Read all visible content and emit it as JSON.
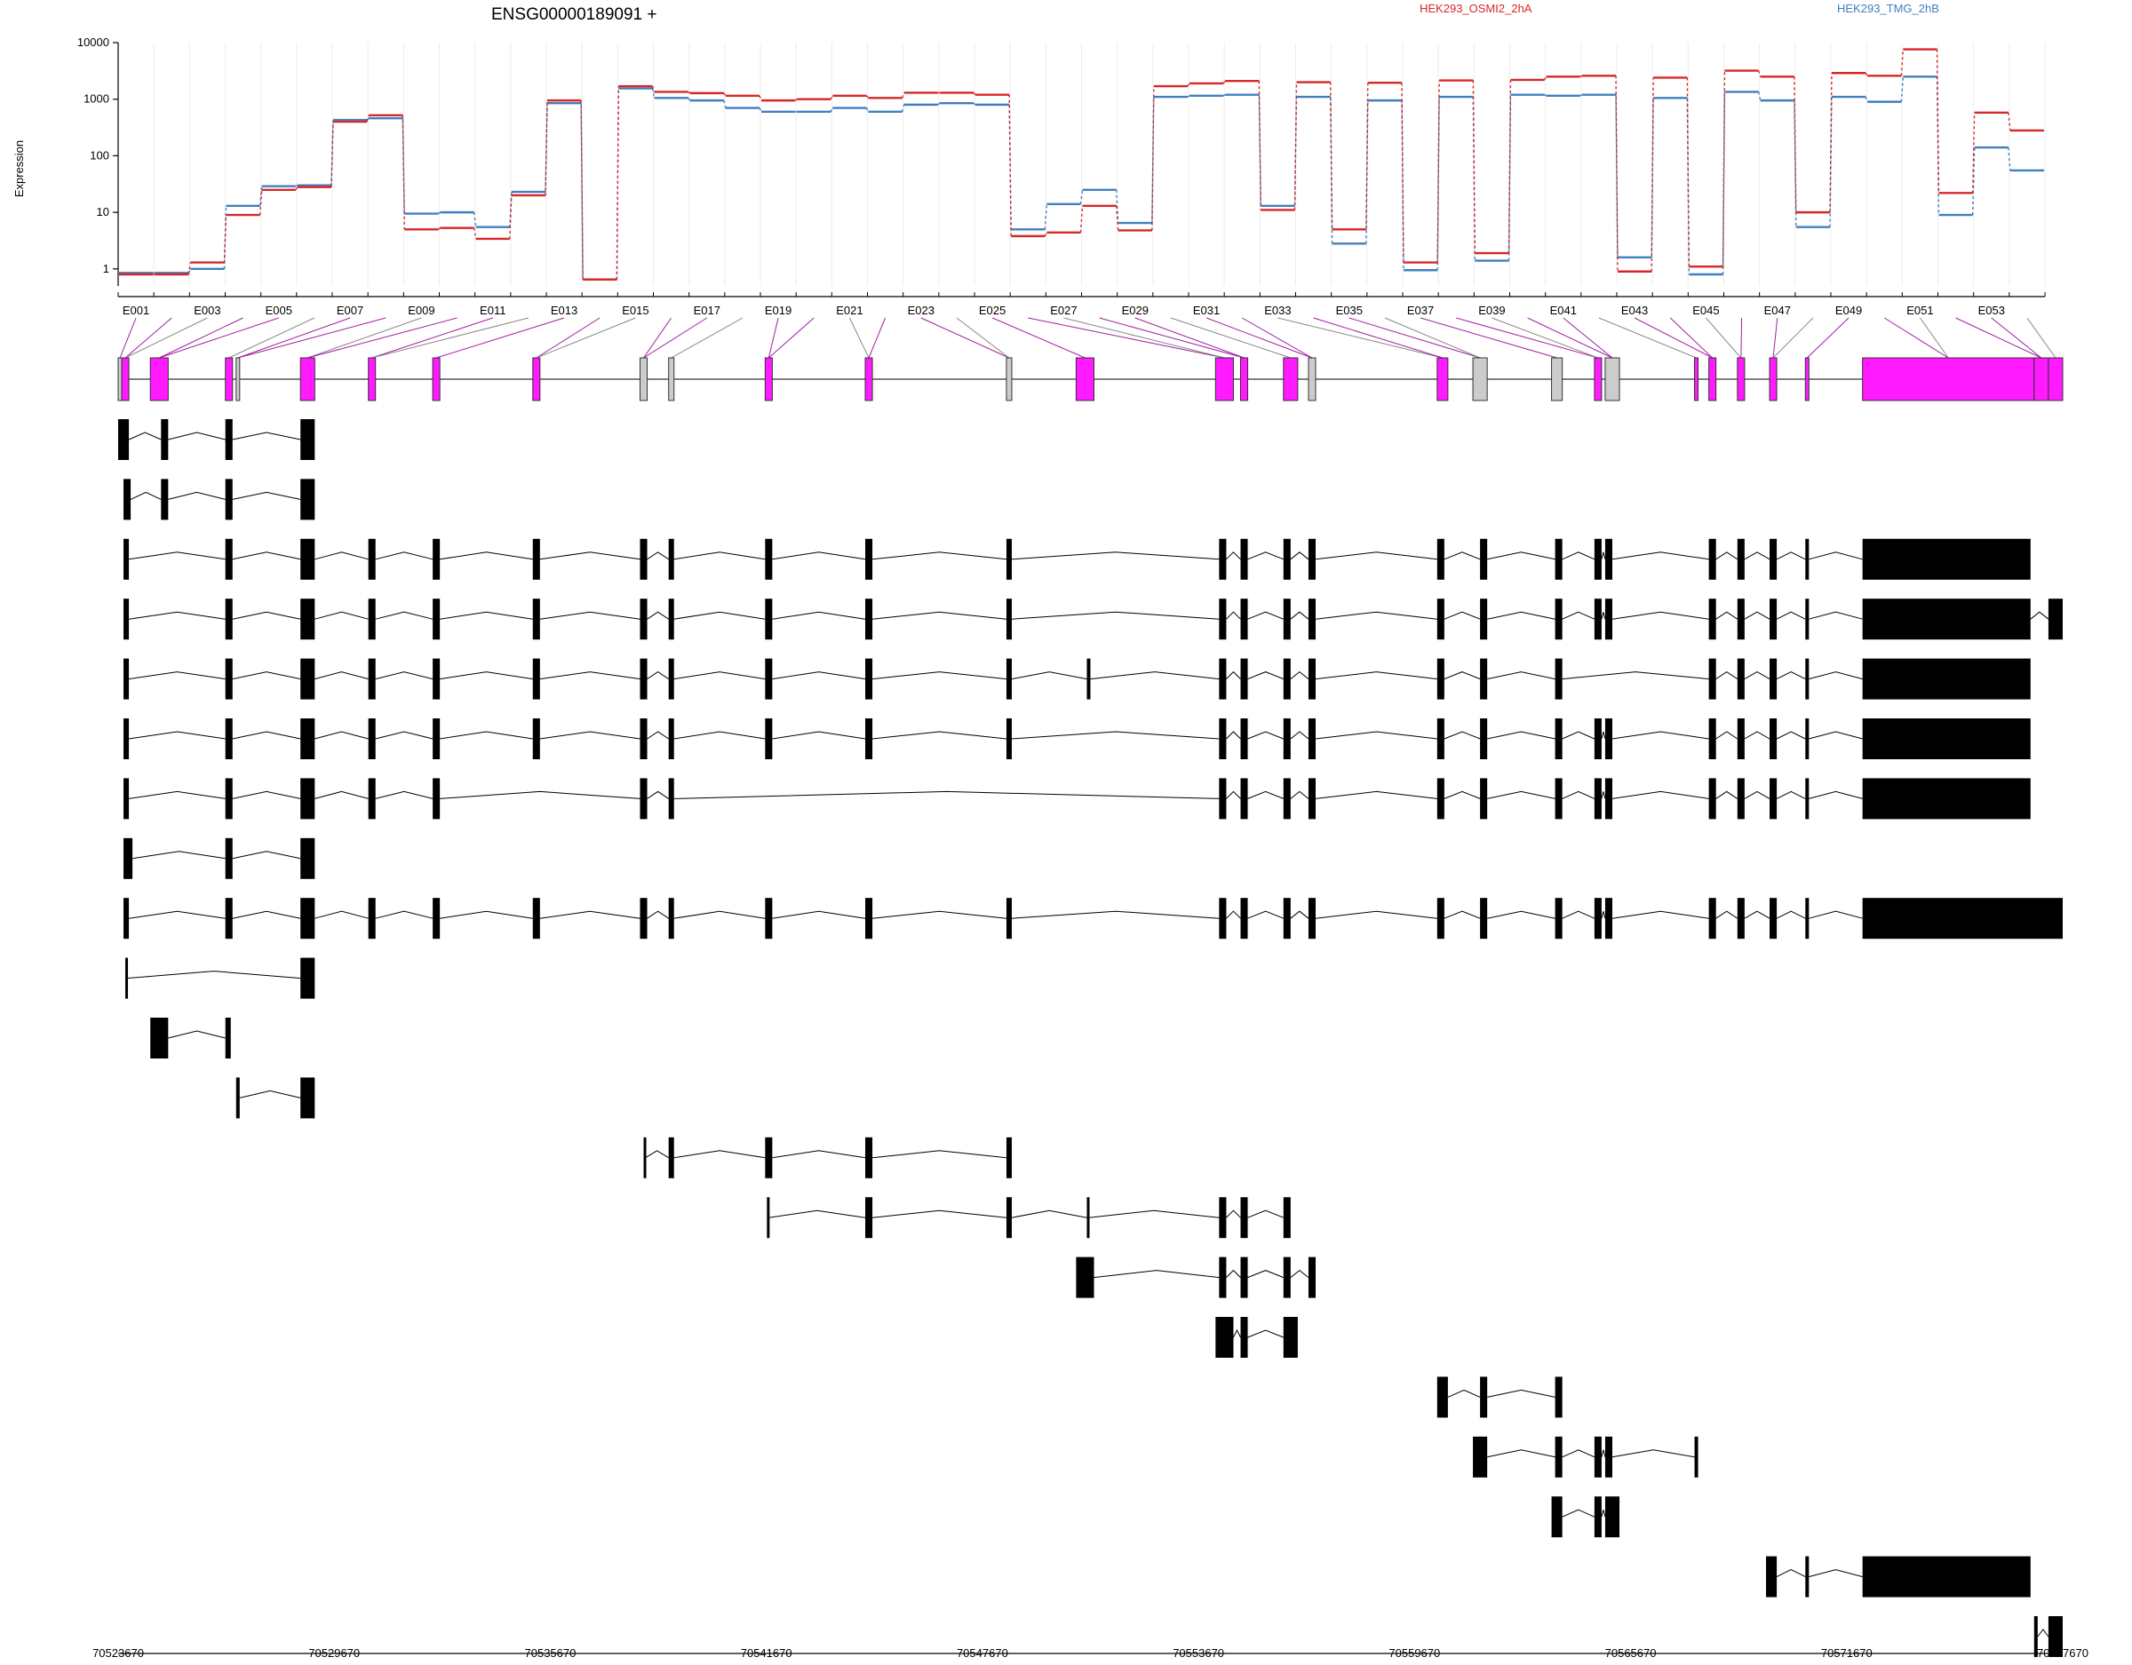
{
  "title": "ENSG00000189091 +",
  "ylabel": "Expression",
  "colors": {
    "sample_a": "#d62728",
    "sample_b": "#3f7fbf",
    "exon_highlight": "#ff1aff",
    "exon_other": "#cccccc",
    "exon_transcript": "#000000",
    "link": "#a020a0"
  },
  "chart_data": {
    "type": "line",
    "y_scale": "log",
    "ylim": [
      0.5,
      10000
    ],
    "y_ticks": [
      1,
      10,
      100,
      1000,
      10000
    ],
    "y_tick_labels": [
      "1",
      "10",
      "100",
      "1000",
      "10000"
    ],
    "x_label_ids": [
      "E001",
      "E003",
      "E005",
      "E007",
      "E009",
      "E011",
      "E013",
      "E015",
      "E017",
      "E019",
      "E021",
      "E023",
      "E025",
      "E027",
      "E029",
      "E031",
      "E033",
      "E035",
      "E037",
      "E039",
      "E041",
      "E043",
      "E045",
      "E047",
      "E049",
      "E051",
      "E053"
    ],
    "categories": [
      "E001",
      "E002",
      "E003",
      "E004",
      "E005",
      "E006",
      "E007",
      "E008",
      "E009",
      "E010",
      "E011",
      "E012",
      "E013",
      "E014",
      "E015",
      "E016",
      "E017",
      "E018",
      "E019",
      "E020",
      "E021",
      "E022",
      "E023",
      "E024",
      "E025",
      "E026",
      "E027",
      "E028",
      "E029",
      "E030",
      "E031",
      "E032",
      "E033",
      "E034",
      "E035",
      "E036",
      "E037",
      "E038",
      "E039",
      "E040",
      "E041",
      "E042",
      "E043",
      "E044",
      "E045",
      "E046",
      "E047",
      "E048",
      "E049",
      "E050",
      "E051",
      "E052",
      "E053",
      "E054"
    ],
    "series": [
      {
        "name": "HEK293_OSMI2_2hA",
        "values": [
          0.8,
          0.8,
          1.3,
          9,
          25,
          28,
          400,
          520,
          5,
          5.3,
          3.4,
          20,
          950,
          0.65,
          1700,
          1350,
          1280,
          1150,
          950,
          1000,
          1150,
          1050,
          1300,
          1300,
          1200,
          3.8,
          4.4,
          13,
          4.8,
          1700,
          1900,
          2100,
          11,
          2000,
          5,
          1950,
          1.3,
          2150,
          1.9,
          2200,
          2500,
          2600,
          0.9,
          2400,
          1.1,
          3200,
          2500,
          10,
          2900,
          2600,
          7600,
          22,
          580,
          280
        ]
      },
      {
        "name": "HEK293_TMG_2hB",
        "values": [
          0.85,
          0.85,
          1,
          13,
          29,
          30,
          430,
          460,
          9.5,
          10,
          5.5,
          23,
          850,
          0.65,
          1550,
          1050,
          950,
          700,
          600,
          600,
          700,
          600,
          800,
          850,
          800,
          5,
          14,
          25,
          6.5,
          1100,
          1150,
          1200,
          13,
          1100,
          2.8,
          950,
          0.95,
          1100,
          1.4,
          1200,
          1150,
          1200,
          1.6,
          1050,
          0.8,
          1350,
          950,
          5.5,
          1100,
          900,
          2500,
          9,
          140,
          55
        ]
      }
    ]
  },
  "genome_axis": {
    "start": 70523670,
    "end": 70577670,
    "ticks": [
      "70523670",
      "70529670",
      "70535670",
      "70541670",
      "70547670",
      "70553670",
      "70559670",
      "70565670",
      "70571670",
      "70577670"
    ]
  },
  "transcripts": [
    [
      [
        0,
        0.3
      ],
      [
        1.2,
        1.4
      ],
      [
        3,
        3.2
      ],
      [
        5.1,
        5.5
      ]
    ],
    [
      [
        0.15,
        0.35
      ],
      [
        1.2,
        1.4
      ],
      [
        3,
        3.2
      ],
      [
        5.1,
        5.5
      ]
    ],
    [
      [
        0.15,
        0.3
      ],
      [
        3,
        3.2
      ],
      [
        5.1,
        5.5
      ],
      [
        7,
        7.2
      ],
      [
        8.8,
        9
      ],
      [
        11.6,
        11.8
      ],
      [
        14.6,
        14.8
      ],
      [
        15.4,
        15.55
      ],
      [
        18.1,
        18.3
      ],
      [
        20.9,
        21.1
      ],
      [
        24.85,
        25
      ],
      [
        30.8,
        31
      ],
      [
        31.4,
        31.6
      ],
      [
        32.6,
        32.8
      ],
      [
        33.3,
        33.5
      ],
      [
        36.9,
        37.1
      ],
      [
        38.1,
        38.3
      ],
      [
        40.2,
        40.4
      ],
      [
        41.3,
        41.5
      ],
      [
        41.6,
        41.8
      ],
      [
        44.5,
        44.7
      ],
      [
        45.3,
        45.5
      ],
      [
        46.2,
        46.4
      ],
      [
        47.2,
        47.3
      ],
      [
        48.8,
        53.5
      ]
    ],
    [
      [
        0.15,
        0.3
      ],
      [
        3,
        3.2
      ],
      [
        5.1,
        5.5
      ],
      [
        7,
        7.2
      ],
      [
        8.8,
        9
      ],
      [
        11.6,
        11.8
      ],
      [
        14.6,
        14.8
      ],
      [
        15.4,
        15.55
      ],
      [
        18.1,
        18.3
      ],
      [
        20.9,
        21.1
      ],
      [
        24.85,
        25
      ],
      [
        30.8,
        31
      ],
      [
        31.4,
        31.6
      ],
      [
        32.6,
        32.8
      ],
      [
        33.3,
        33.5
      ],
      [
        36.9,
        37.1
      ],
      [
        38.1,
        38.3
      ],
      [
        40.2,
        40.4
      ],
      [
        41.3,
        41.5
      ],
      [
        41.6,
        41.8
      ],
      [
        44.5,
        44.7
      ],
      [
        45.3,
        45.5
      ],
      [
        46.2,
        46.4
      ],
      [
        47.2,
        47.3
      ],
      [
        48.8,
        53.5
      ],
      [
        54,
        54.4
      ]
    ],
    [
      [
        0.15,
        0.3
      ],
      [
        3,
        3.2
      ],
      [
        5.1,
        5.5
      ],
      [
        7,
        7.2
      ],
      [
        8.8,
        9
      ],
      [
        11.6,
        11.8
      ],
      [
        14.6,
        14.8
      ],
      [
        15.4,
        15.55
      ],
      [
        18.1,
        18.3
      ],
      [
        20.9,
        21.1
      ],
      [
        24.85,
        25
      ],
      [
        27.1,
        27.2
      ],
      [
        30.8,
        31
      ],
      [
        31.4,
        31.6
      ],
      [
        32.6,
        32.8
      ],
      [
        33.3,
        33.5
      ],
      [
        36.9,
        37.1
      ],
      [
        38.1,
        38.3
      ],
      [
        40.2,
        40.4
      ],
      [
        44.5,
        44.7
      ],
      [
        45.3,
        45.5
      ],
      [
        46.2,
        46.4
      ],
      [
        47.2,
        47.3
      ],
      [
        48.8,
        53.5
      ]
    ],
    [
      [
        0.15,
        0.3
      ],
      [
        3,
        3.2
      ],
      [
        5.1,
        5.5
      ],
      [
        7,
        7.2
      ],
      [
        8.8,
        9
      ],
      [
        11.6,
        11.8
      ],
      [
        14.6,
        14.8
      ],
      [
        15.4,
        15.55
      ],
      [
        18.1,
        18.3
      ],
      [
        20.9,
        21.1
      ],
      [
        24.85,
        25
      ],
      [
        30.8,
        31
      ],
      [
        31.4,
        31.6
      ],
      [
        32.6,
        32.8
      ],
      [
        33.3,
        33.5
      ],
      [
        36.9,
        37.1
      ],
      [
        38.1,
        38.3
      ],
      [
        40.2,
        40.4
      ],
      [
        41.3,
        41.5
      ],
      [
        41.6,
        41.8
      ],
      [
        44.5,
        44.7
      ],
      [
        45.3,
        45.5
      ],
      [
        46.2,
        46.4
      ],
      [
        47.2,
        47.3
      ],
      [
        48.8,
        53.5
      ]
    ],
    [
      [
        0.15,
        0.3
      ],
      [
        3,
        3.2
      ],
      [
        5.1,
        5.5
      ],
      [
        7,
        7.2
      ],
      [
        8.8,
        9
      ],
      [
        14.6,
        14.8
      ],
      [
        15.4,
        15.55
      ],
      [
        30.8,
        31
      ],
      [
        31.4,
        31.6
      ],
      [
        32.6,
        32.8
      ],
      [
        33.3,
        33.5
      ],
      [
        36.9,
        37.1
      ],
      [
        38.1,
        38.3
      ],
      [
        40.2,
        40.4
      ],
      [
        41.3,
        41.5
      ],
      [
        41.6,
        41.8
      ],
      [
        44.5,
        44.7
      ],
      [
        45.3,
        45.5
      ],
      [
        46.2,
        46.4
      ],
      [
        47.2,
        47.3
      ],
      [
        48.8,
        53.5
      ]
    ],
    [
      [
        0.15,
        0.4
      ],
      [
        3,
        3.2
      ],
      [
        5.1,
        5.5
      ]
    ],
    [
      [
        0.15,
        0.3
      ],
      [
        3,
        3.2
      ],
      [
        5.1,
        5.5
      ],
      [
        7,
        7.2
      ],
      [
        8.8,
        9
      ],
      [
        11.6,
        11.8
      ],
      [
        14.6,
        14.8
      ],
      [
        15.4,
        15.55
      ],
      [
        18.1,
        18.3
      ],
      [
        20.9,
        21.1
      ],
      [
        24.85,
        25
      ],
      [
        30.8,
        31
      ],
      [
        31.4,
        31.6
      ],
      [
        32.6,
        32.8
      ],
      [
        33.3,
        33.5
      ],
      [
        36.9,
        37.1
      ],
      [
        38.1,
        38.3
      ],
      [
        40.2,
        40.4
      ],
      [
        41.3,
        41.5
      ],
      [
        41.6,
        41.8
      ],
      [
        44.5,
        44.7
      ],
      [
        45.3,
        45.5
      ],
      [
        46.2,
        46.4
      ],
      [
        47.2,
        47.3
      ],
      [
        48.8,
        54.4
      ]
    ],
    [
      [
        0.2,
        0.25
      ],
      [
        5.1,
        5.5
      ]
    ],
    [
      [
        0.9,
        1.4
      ],
      [
        3,
        3.15
      ]
    ],
    [
      [
        3.3,
        3.4
      ],
      [
        5.1,
        5.5
      ]
    ],
    [
      [
        14.7,
        14.75
      ],
      [
        15.4,
        15.55
      ],
      [
        18.1,
        18.3
      ],
      [
        20.9,
        21.1
      ],
      [
        24.85,
        25
      ]
    ],
    [
      [
        18.15,
        18.2
      ],
      [
        20.9,
        21.1
      ],
      [
        24.85,
        25
      ],
      [
        27.1,
        27.15
      ],
      [
        30.8,
        31
      ],
      [
        31.4,
        31.6
      ],
      [
        32.6,
        32.8
      ]
    ],
    [
      [
        26.8,
        27.3
      ],
      [
        30.8,
        31
      ],
      [
        31.4,
        31.6
      ],
      [
        32.6,
        32.8
      ],
      [
        33.3,
        33.5
      ]
    ],
    [
      [
        30.7,
        31.2
      ],
      [
        31.4,
        31.6
      ],
      [
        32.6,
        33
      ]
    ],
    [
      [
        36.9,
        37.2
      ],
      [
        38.1,
        38.3
      ],
      [
        40.2,
        40.4
      ]
    ],
    [
      [
        37.9,
        38.3
      ],
      [
        40.2,
        40.4
      ],
      [
        41.3,
        41.5
      ],
      [
        41.6,
        41.8
      ],
      [
        44.1,
        44.2
      ]
    ],
    [
      [
        40.1,
        40.4
      ],
      [
        41.3,
        41.5
      ],
      [
        41.6,
        42
      ]
    ],
    [
      [
        46.1,
        46.4
      ],
      [
        47.2,
        47.3
      ],
      [
        48.8,
        53.5
      ]
    ],
    [
      [
        53.6,
        53.7
      ],
      [
        54,
        54.4
      ]
    ]
  ]
}
